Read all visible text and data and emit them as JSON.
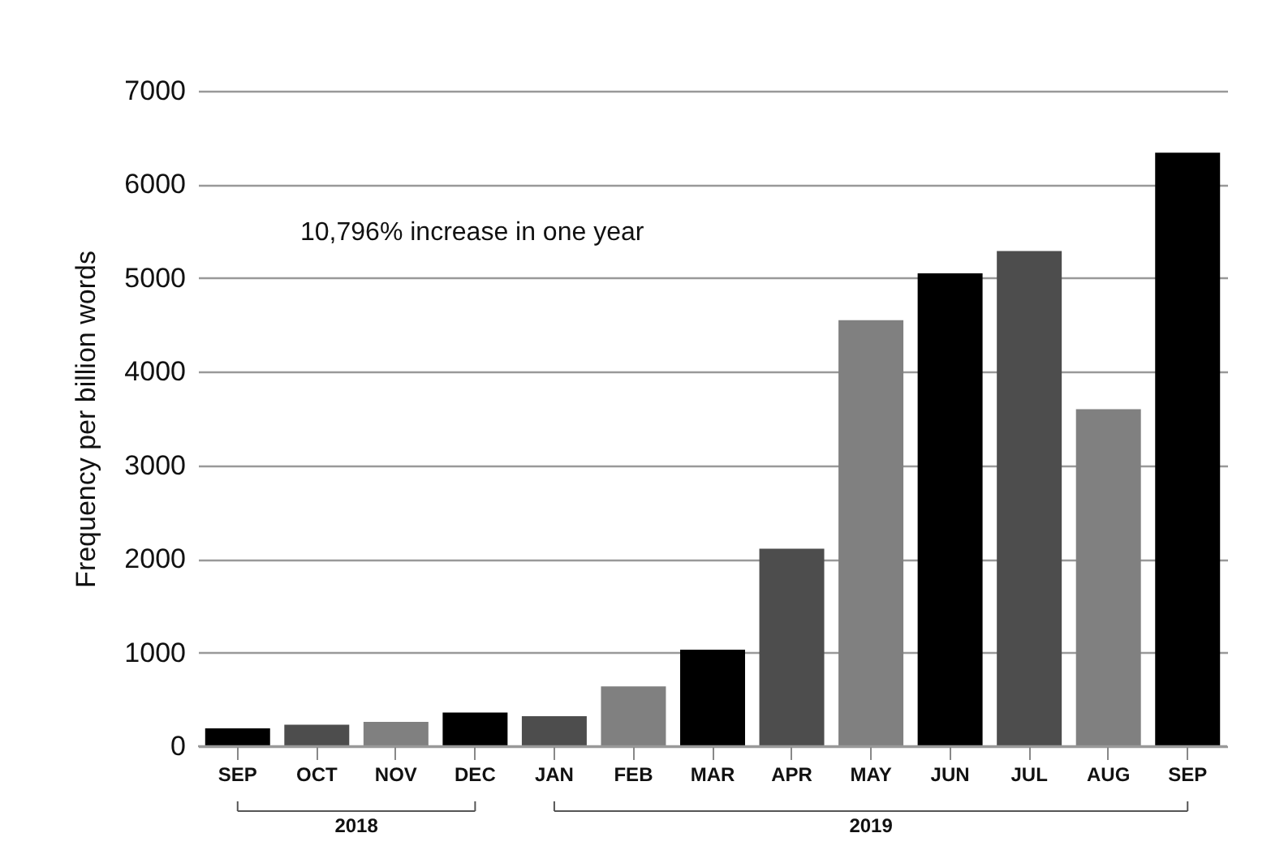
{
  "chart_data": {
    "type": "bar",
    "ylabel": "Frequency per billion words",
    "categories": [
      "SEP",
      "OCT",
      "NOV",
      "DEC",
      "JAN",
      "FEB",
      "MAR",
      "APR",
      "MAY",
      "JUN",
      "JUL",
      "AUG",
      "SEP"
    ],
    "values": [
      190,
      230,
      260,
      360,
      320,
      640,
      1030,
      2110,
      4550,
      5050,
      5290,
      3600,
      6340
    ],
    "colors": [
      "#000000",
      "#4d4d4d",
      "#808080",
      "#000000",
      "#4d4d4d",
      "#808080",
      "#000000",
      "#4d4d4d",
      "#808080",
      "#000000",
      "#4d4d4d",
      "#808080",
      "#000000"
    ],
    "ylim": [
      0,
      7000
    ],
    "yticks": [
      0,
      1000,
      2000,
      3000,
      4000,
      5000,
      6000,
      7000
    ],
    "grid": "y",
    "annotations": [
      "10,796% increase in one year",
      "2018",
      "2019"
    ]
  }
}
